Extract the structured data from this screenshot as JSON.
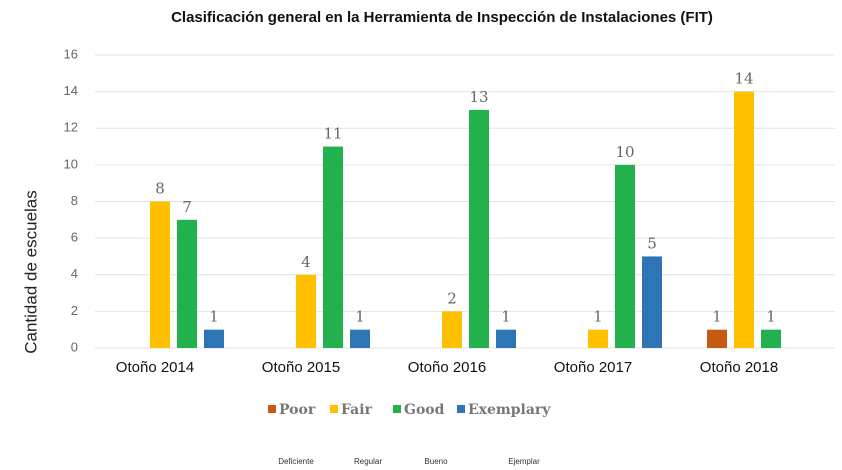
{
  "chart_data": {
    "type": "bar",
    "title": "Clasificación general en la Herramienta de Inspección de Instalaciones (FIT)",
    "y_label": "Cantidad de escuelas",
    "categories": [
      "Otoño 2014",
      "Otoño 2015",
      "Otoño 2016",
      "Otoño 2017",
      "Otoño 2018"
    ],
    "series": [
      {
        "name": "Poor",
        "color": "#c55a11",
        "values": [
          null,
          null,
          null,
          null,
          1
        ]
      },
      {
        "name": "Fair",
        "color": "#ffc000",
        "values": [
          8,
          4,
          2,
          1,
          14
        ]
      },
      {
        "name": "Good",
        "color": "#22b14c",
        "values": [
          7,
          11,
          13,
          10,
          1
        ]
      },
      {
        "name": "Exemplary",
        "color": "#2e75b6",
        "values": [
          1,
          1,
          1,
          5,
          null
        ]
      }
    ],
    "legend_translations": [
      "Deficiente",
      "Regular",
      "Bueno",
      "Ejemplar"
    ],
    "ylim": [
      0,
      16
    ],
    "yticks": [
      0,
      2,
      4,
      6,
      8,
      10,
      12,
      14,
      16
    ],
    "grid": true,
    "legend": "bottom"
  }
}
